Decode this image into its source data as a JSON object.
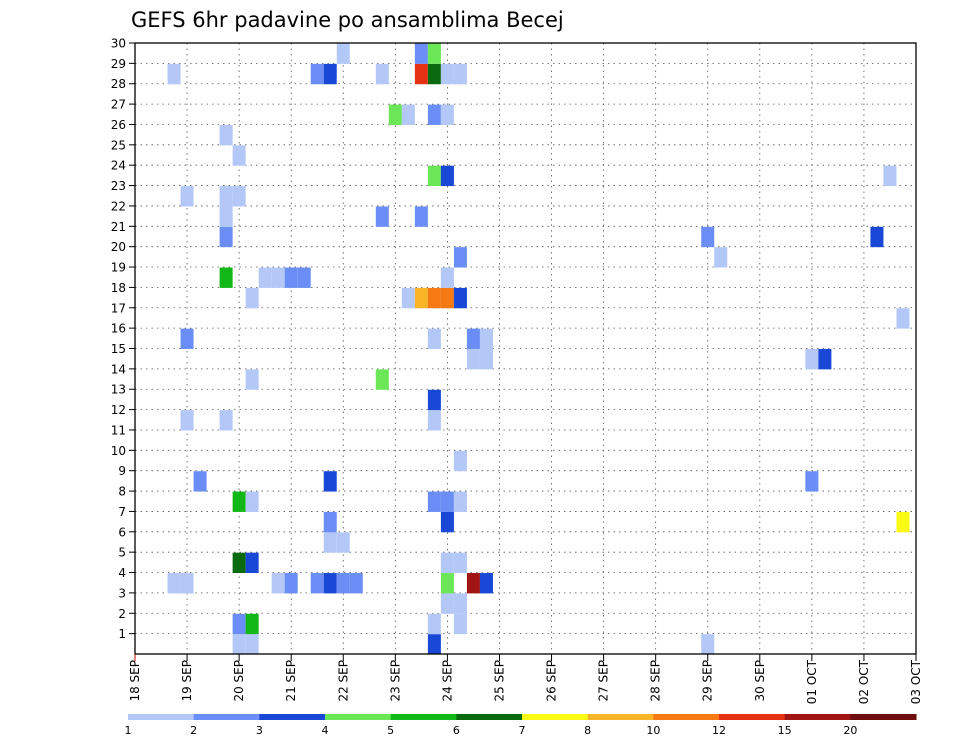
{
  "chart_data": {
    "type": "heatmap",
    "title": "GEFS 6hr padavine po ansamblima Becej",
    "x_ticks": [
      "18 SEP",
      "19 SEP",
      "20 SEP",
      "21 SEP",
      "22 SEP",
      "23 SEP",
      "24 SEP",
      "25 SEP",
      "26 SEP",
      "27 SEP",
      "28 SEP",
      "29 SEP",
      "30 SEP",
      "01 OCT",
      "02 OCT",
      "03 OCT"
    ],
    "y_ticks": [
      "1",
      "2",
      "3",
      "4",
      "5",
      "6",
      "7",
      "8",
      "9",
      "10",
      "11",
      "12",
      "13",
      "14",
      "15",
      "16",
      "17",
      "18",
      "19",
      "20",
      "21",
      "22",
      "23",
      "24",
      "25",
      "26",
      "27",
      "28",
      "29",
      "30"
    ],
    "xlim_days": [
      0,
      15
    ],
    "ylim_members": [
      0,
      30
    ],
    "grid": "dotted",
    "legend_position": "bottom",
    "colorbar": {
      "labels": [
        "1",
        "2",
        "3",
        "4",
        "5",
        "6",
        "7",
        "8",
        "10",
        "12",
        "15",
        "20"
      ],
      "colors": [
        "#b4c8f8",
        "#6a8ef5",
        "#1a48d6",
        "#6ae657",
        "#12b818",
        "#0a6a10",
        "#fafa14",
        "#fab428",
        "#f57a14",
        "#e63214",
        "#a01414",
        "#6e0e0e"
      ]
    },
    "cells": [
      {
        "d": 2.0,
        "m": 0,
        "c": 0
      },
      {
        "d": 2.25,
        "m": 0,
        "c": 0
      },
      {
        "d": 5.75,
        "m": 0,
        "c": 2
      },
      {
        "d": 11.0,
        "m": 0,
        "c": 0
      },
      {
        "d": 2.0,
        "m": 1,
        "c": 1
      },
      {
        "d": 2.25,
        "m": 1,
        "c": 4
      },
      {
        "d": 5.75,
        "m": 1,
        "c": 0
      },
      {
        "d": 6.25,
        "m": 1,
        "c": 0
      },
      {
        "d": 6.0,
        "m": 2,
        "c": 0
      },
      {
        "d": 6.25,
        "m": 2,
        "c": 0
      },
      {
        "d": 0.75,
        "m": 3,
        "c": 0
      },
      {
        "d": 1.0,
        "m": 3,
        "c": 0
      },
      {
        "d": 2.75,
        "m": 3,
        "c": 0
      },
      {
        "d": 3.0,
        "m": 3,
        "c": 1
      },
      {
        "d": 3.5,
        "m": 3,
        "c": 1
      },
      {
        "d": 3.75,
        "m": 3,
        "c": 2
      },
      {
        "d": 4.0,
        "m": 3,
        "c": 1
      },
      {
        "d": 4.25,
        "m": 3,
        "c": 1
      },
      {
        "d": 6.0,
        "m": 3,
        "c": 3
      },
      {
        "d": 6.5,
        "m": 3,
        "c": 10
      },
      {
        "d": 6.75,
        "m": 3,
        "c": 2
      },
      {
        "d": 2.0,
        "m": 4,
        "c": 5
      },
      {
        "d": 2.25,
        "m": 4,
        "c": 2
      },
      {
        "d": 6.0,
        "m": 4,
        "c": 0
      },
      {
        "d": 6.25,
        "m": 4,
        "c": 0
      },
      {
        "d": 3.75,
        "m": 5,
        "c": 0
      },
      {
        "d": 4.0,
        "m": 5,
        "c": 0
      },
      {
        "d": 3.75,
        "m": 6,
        "c": 1
      },
      {
        "d": 6.0,
        "m": 6,
        "c": 2
      },
      {
        "d": 14.75,
        "m": 6,
        "c": 6
      },
      {
        "d": 2.0,
        "m": 7,
        "c": 4
      },
      {
        "d": 2.25,
        "m": 7,
        "c": 0
      },
      {
        "d": 5.75,
        "m": 7,
        "c": 1
      },
      {
        "d": 6.0,
        "m": 7,
        "c": 1
      },
      {
        "d": 6.25,
        "m": 7,
        "c": 0
      },
      {
        "d": 1.25,
        "m": 8,
        "c": 1
      },
      {
        "d": 3.75,
        "m": 8,
        "c": 2
      },
      {
        "d": 13.0,
        "m": 8,
        "c": 1
      },
      {
        "d": 6.25,
        "m": 9,
        "c": 0
      },
      {
        "d": 1.0,
        "m": 11,
        "c": 0
      },
      {
        "d": 1.75,
        "m": 11,
        "c": 0
      },
      {
        "d": 5.75,
        "m": 11,
        "c": 0
      },
      {
        "d": 5.75,
        "m": 12,
        "c": 2
      },
      {
        "d": 2.25,
        "m": 13,
        "c": 0
      },
      {
        "d": 4.75,
        "m": 13,
        "c": 3
      },
      {
        "d": 6.5,
        "m": 14,
        "c": 0
      },
      {
        "d": 6.75,
        "m": 14,
        "c": 0
      },
      {
        "d": 13.0,
        "m": 14,
        "c": 0
      },
      {
        "d": 13.25,
        "m": 14,
        "c": 2
      },
      {
        "d": 1.0,
        "m": 15,
        "c": 1
      },
      {
        "d": 5.75,
        "m": 15,
        "c": 0
      },
      {
        "d": 6.5,
        "m": 15,
        "c": 1
      },
      {
        "d": 6.75,
        "m": 15,
        "c": 0
      },
      {
        "d": 14.75,
        "m": 16,
        "c": 0
      },
      {
        "d": 2.25,
        "m": 17,
        "c": 0
      },
      {
        "d": 5.25,
        "m": 17,
        "c": 0
      },
      {
        "d": 5.5,
        "m": 17,
        "c": 7
      },
      {
        "d": 5.75,
        "m": 17,
        "c": 8
      },
      {
        "d": 6.0,
        "m": 17,
        "c": 8
      },
      {
        "d": 6.25,
        "m": 17,
        "c": 2
      },
      {
        "d": 1.75,
        "m": 18,
        "c": 4
      },
      {
        "d": 2.5,
        "m": 18,
        "c": 0
      },
      {
        "d": 2.75,
        "m": 18,
        "c": 0
      },
      {
        "d": 3.0,
        "m": 18,
        "c": 1
      },
      {
        "d": 3.25,
        "m": 18,
        "c": 1
      },
      {
        "d": 6.0,
        "m": 18,
        "c": 0
      },
      {
        "d": 6.25,
        "m": 19,
        "c": 1
      },
      {
        "d": 11.25,
        "m": 19,
        "c": 0
      },
      {
        "d": 1.75,
        "m": 20,
        "c": 1
      },
      {
        "d": 11.0,
        "m": 20,
        "c": 1
      },
      {
        "d": 14.25,
        "m": 20,
        "c": 2
      },
      {
        "d": 1.75,
        "m": 21,
        "c": 0
      },
      {
        "d": 4.75,
        "m": 21,
        "c": 1
      },
      {
        "d": 5.5,
        "m": 21,
        "c": 1
      },
      {
        "d": 1.0,
        "m": 22,
        "c": 0
      },
      {
        "d": 1.75,
        "m": 22,
        "c": 0
      },
      {
        "d": 2.0,
        "m": 22,
        "c": 0
      },
      {
        "d": 5.75,
        "m": 23,
        "c": 3
      },
      {
        "d": 6.0,
        "m": 23,
        "c": 2
      },
      {
        "d": 14.5,
        "m": 23,
        "c": 0
      },
      {
        "d": 2.0,
        "m": 24,
        "c": 0
      },
      {
        "d": 1.75,
        "m": 25,
        "c": 0
      },
      {
        "d": 5.0,
        "m": 26,
        "c": 3
      },
      {
        "d": 5.25,
        "m": 26,
        "c": 0
      },
      {
        "d": 5.75,
        "m": 26,
        "c": 1
      },
      {
        "d": 6.0,
        "m": 26,
        "c": 0
      },
      {
        "d": 0.75,
        "m": 28,
        "c": 0
      },
      {
        "d": 3.5,
        "m": 28,
        "c": 1
      },
      {
        "d": 3.75,
        "m": 28,
        "c": 2
      },
      {
        "d": 4.75,
        "m": 28,
        "c": 0
      },
      {
        "d": 5.5,
        "m": 28,
        "c": 9
      },
      {
        "d": 5.75,
        "m": 28,
        "c": 5
      },
      {
        "d": 6.0,
        "m": 28,
        "c": 0
      },
      {
        "d": 6.25,
        "m": 28,
        "c": 0
      },
      {
        "d": 4.0,
        "m": 29,
        "c": 0
      },
      {
        "d": 5.5,
        "m": 29,
        "c": 1
      },
      {
        "d": 5.75,
        "m": 29,
        "c": 3
      }
    ]
  }
}
